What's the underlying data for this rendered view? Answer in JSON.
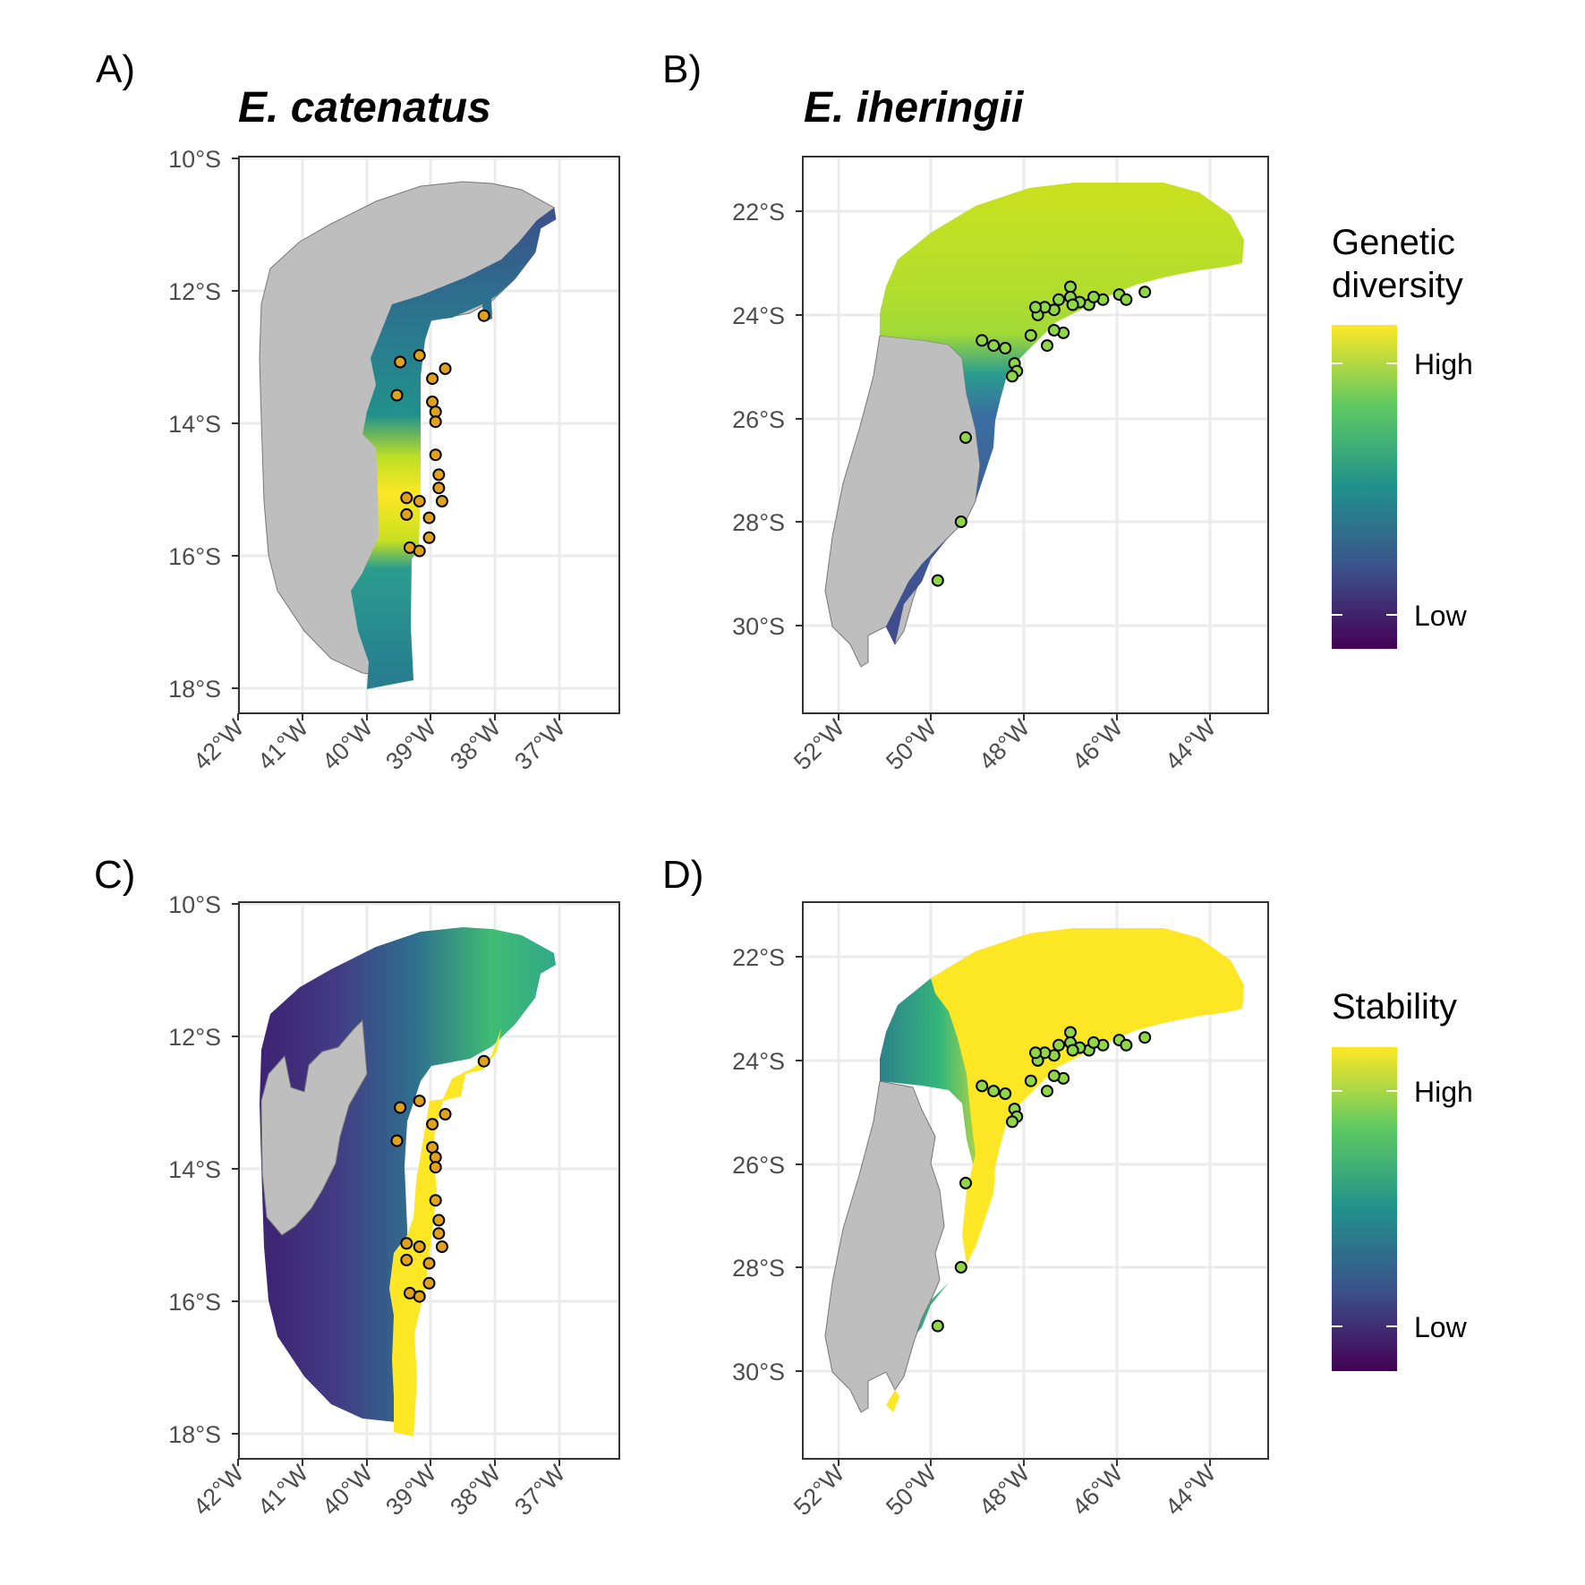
{
  "figure": {
    "panels": [
      {
        "id": "A",
        "label": "A)",
        "title": "E. catenatus",
        "x_ticks": [
          "42°W",
          "41°W",
          "40°W",
          "39°W",
          "38°W",
          "37°W"
        ],
        "y_ticks": [
          "10°S",
          "12°S",
          "14°S",
          "16°S",
          "18°S"
        ],
        "layer": "Genetic diversity"
      },
      {
        "id": "B",
        "label": "B)",
        "title": "E. iheringii",
        "x_ticks": [
          "52°W",
          "50°W",
          "48°W",
          "46°W",
          "44°W"
        ],
        "y_ticks": [
          "22°S",
          "24°S",
          "26°S",
          "28°S",
          "30°S"
        ],
        "layer": "Genetic diversity"
      },
      {
        "id": "C",
        "label": "C)",
        "title": "",
        "x_ticks": [
          "42°W",
          "41°W",
          "40°W",
          "39°W",
          "38°W",
          "37°W"
        ],
        "y_ticks": [
          "10°S",
          "12°S",
          "14°S",
          "16°S",
          "18°S"
        ],
        "layer": "Stability"
      },
      {
        "id": "D",
        "label": "D)",
        "title": "",
        "x_ticks": [
          "52°W",
          "50°W",
          "48°W",
          "46°W",
          "44°W"
        ],
        "y_ticks": [
          "22°S",
          "24°S",
          "26°S",
          "28°S",
          "30°S"
        ],
        "layer": "Stability"
      }
    ],
    "legends": [
      {
        "title_line1": "Genetic",
        "title_line2": "diversity",
        "high_label": "High",
        "low_label": "Low"
      },
      {
        "title_line1": "Stability",
        "title_line2": "",
        "high_label": "High",
        "low_label": "Low"
      }
    ],
    "colors": {
      "viridis": [
        "#440154",
        "#3b528b",
        "#21918c",
        "#5ec962",
        "#fde725"
      ],
      "range_gray": "#bebebe",
      "grid": "#ebebeb",
      "panel_border": "#333333",
      "point_fill_catenatus": "#e0a21b",
      "point_fill_iheringii": "#8fd744"
    }
  },
  "chart_data": [
    {
      "type": "scatter",
      "panel": "A",
      "title": "E. catenatus",
      "x_range_deg": [
        -42.2,
        -36.3
      ],
      "y_range_deg": [
        -18.4,
        -10.0
      ],
      "points": [
        [
          -38.4,
          -12.4
        ],
        [
          -39.7,
          -13.1
        ],
        [
          -39.4,
          -13.0
        ],
        [
          -39.0,
          -13.2
        ],
        [
          -39.2,
          -13.35
        ],
        [
          -39.75,
          -13.6
        ],
        [
          -39.2,
          -13.7
        ],
        [
          -39.15,
          -13.85
        ],
        [
          -39.15,
          -14.0
        ],
        [
          -39.15,
          -14.5
        ],
        [
          -39.1,
          -14.8
        ],
        [
          -39.1,
          -15.0
        ],
        [
          -39.6,
          -15.15
        ],
        [
          -39.4,
          -15.2
        ],
        [
          -39.05,
          -15.2
        ],
        [
          -39.6,
          -15.4
        ],
        [
          -39.25,
          -15.45
        ],
        [
          -39.25,
          -15.75
        ],
        [
          -39.55,
          -15.9
        ],
        [
          -39.4,
          -15.95
        ]
      ],
      "grid": true,
      "legend": "right"
    },
    {
      "type": "scatter",
      "panel": "B",
      "title": "E. iheringii",
      "x_range_deg": [
        -52.8,
        -42.8
      ],
      "y_range_deg": [
        -31.8,
        -20.9
      ],
      "points": [
        [
          -45.45,
          -23.55
        ],
        [
          -46.0,
          -23.6
        ],
        [
          -45.85,
          -23.7
        ],
        [
          -46.35,
          -23.7
        ],
        [
          -46.65,
          -23.8
        ],
        [
          -46.55,
          -23.65
        ],
        [
          -46.85,
          -23.75
        ],
        [
          -47.05,
          -23.45
        ],
        [
          -47.05,
          -23.65
        ],
        [
          -47.0,
          -23.8
        ],
        [
          -47.3,
          -23.7
        ],
        [
          -47.4,
          -23.9
        ],
        [
          -47.6,
          -23.85
        ],
        [
          -47.75,
          -24.0
        ],
        [
          -47.8,
          -23.85
        ],
        [
          -47.2,
          -24.35
        ],
        [
          -47.4,
          -24.3
        ],
        [
          -47.55,
          -24.6
        ],
        [
          -47.9,
          -24.4
        ],
        [
          -48.25,
          -24.95
        ],
        [
          -48.2,
          -25.1
        ],
        [
          -48.3,
          -25.2
        ],
        [
          -48.45,
          -24.65
        ],
        [
          -48.7,
          -24.6
        ],
        [
          -48.95,
          -24.5
        ],
        [
          -49.3,
          -26.4
        ],
        [
          -49.4,
          -28.05
        ],
        [
          -49.9,
          -29.2
        ]
      ],
      "grid": true,
      "legend": "right"
    },
    {
      "type": "scatter",
      "panel": "C",
      "x_range_deg": [
        -42.2,
        -36.3
      ],
      "y_range_deg": [
        -18.4,
        -10.0
      ],
      "points": [
        [
          -38.4,
          -12.4
        ],
        [
          -39.7,
          -13.1
        ],
        [
          -39.4,
          -13.0
        ],
        [
          -39.0,
          -13.2
        ],
        [
          -39.2,
          -13.35
        ],
        [
          -39.75,
          -13.6
        ],
        [
          -39.2,
          -13.7
        ],
        [
          -39.15,
          -13.85
        ],
        [
          -39.15,
          -14.0
        ],
        [
          -39.15,
          -14.5
        ],
        [
          -39.1,
          -14.8
        ],
        [
          -39.1,
          -15.0
        ],
        [
          -39.6,
          -15.15
        ],
        [
          -39.4,
          -15.2
        ],
        [
          -39.05,
          -15.2
        ],
        [
          -39.6,
          -15.4
        ],
        [
          -39.25,
          -15.45
        ],
        [
          -39.25,
          -15.75
        ],
        [
          -39.55,
          -15.9
        ],
        [
          -39.4,
          -15.95
        ]
      ],
      "grid": true,
      "legend": "right"
    },
    {
      "type": "scatter",
      "panel": "D",
      "x_range_deg": [
        -52.8,
        -42.8
      ],
      "y_range_deg": [
        -31.8,
        -20.9
      ],
      "points": [
        [
          -45.45,
          -23.55
        ],
        [
          -46.0,
          -23.6
        ],
        [
          -45.85,
          -23.7
        ],
        [
          -46.35,
          -23.7
        ],
        [
          -46.65,
          -23.8
        ],
        [
          -46.55,
          -23.65
        ],
        [
          -46.85,
          -23.75
        ],
        [
          -47.05,
          -23.45
        ],
        [
          -47.05,
          -23.65
        ],
        [
          -47.0,
          -23.8
        ],
        [
          -47.3,
          -23.7
        ],
        [
          -47.4,
          -23.9
        ],
        [
          -47.6,
          -23.85
        ],
        [
          -47.75,
          -24.0
        ],
        [
          -47.8,
          -23.85
        ],
        [
          -47.2,
          -24.35
        ],
        [
          -47.4,
          -24.3
        ],
        [
          -47.55,
          -24.6
        ],
        [
          -47.9,
          -24.4
        ],
        [
          -48.25,
          -24.95
        ],
        [
          -48.2,
          -25.1
        ],
        [
          -48.3,
          -25.2
        ],
        [
          -48.45,
          -24.65
        ],
        [
          -48.7,
          -24.6
        ],
        [
          -48.95,
          -24.5
        ],
        [
          -49.3,
          -26.4
        ],
        [
          -49.4,
          -28.05
        ],
        [
          -49.9,
          -29.2
        ]
      ],
      "grid": true,
      "legend": "right"
    }
  ]
}
